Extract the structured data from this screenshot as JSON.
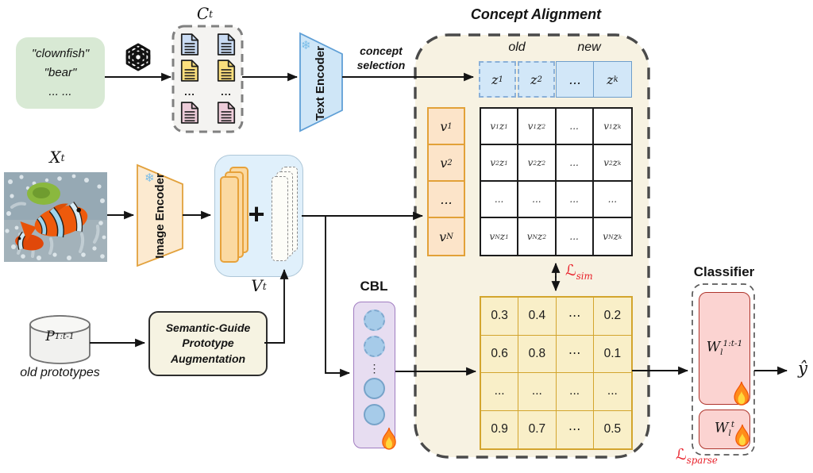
{
  "colors": {
    "panel_bg": "#f7f2e2",
    "accent_red": "#e8212b",
    "doc_blue": "#c9dbf3",
    "doc_yellow": "#fbdf7d",
    "doc_pink": "#edccd9"
  },
  "input_block": {
    "class_lines": [
      "\"clownfish\"",
      "\"bear\"",
      "... ..."
    ],
    "ct_label_html": "C<sub>t</sub>",
    "doc_dots": "...",
    "doc_rows": [
      [
        "blue",
        "blue"
      ],
      [
        "yellow",
        "yellow"
      ],
      "dots",
      [
        "pink",
        "pink"
      ]
    ]
  },
  "image_block": {
    "xt_label_html": "X<sub>t</sub>",
    "image_encoder_lines": [
      "Image",
      "Encoder"
    ],
    "snowflake": "❄"
  },
  "text_block": {
    "text_encoder_lines": [
      "Text",
      "Encoder"
    ],
    "snowflake": "❄",
    "concept_selection_lines": [
      "concept",
      "selection"
    ]
  },
  "fusion": {
    "plus": "+",
    "vt_label_html": "V<sub>t</sub>"
  },
  "prototypes": {
    "p_label_html": "P<sub>1:t-1</sub>",
    "caption": "old prototypes",
    "sga_lines": [
      "Semantic-Guide",
      "Prototype",
      "Augmentation"
    ]
  },
  "cbl": {
    "label": "CBL",
    "dots": "⋮",
    "circles": [
      "dashed",
      "dashed",
      "dots",
      "solid",
      "solid"
    ]
  },
  "alignment": {
    "title": "Concept Alignment",
    "old_label": "old",
    "new_label": "new",
    "z_cells_html": [
      "z<sub>1</sub>",
      "z<sub>2</sub>",
      "...",
      "z<sub>k</sub>"
    ],
    "v_cells_html": [
      "v<sub>1</sub>",
      "v<sub>2</sub>",
      "...",
      "v<sub>N</sub>"
    ],
    "sim_cells_html": [
      [
        "v<sub>1</sub>z<sub>1</sub>",
        "v<sub>1</sub>z<sub>2</sub>",
        "...",
        "v<sub>1</sub>z<sub>k</sub>"
      ],
      [
        "v<sub>2</sub>z<sub>1</sub>",
        "v<sub>2</sub>z<sub>2</sub>",
        "...",
        "v<sub>2</sub>z<sub>k</sub>"
      ],
      [
        "...",
        "...",
        "...",
        "..."
      ],
      [
        "v<sub>N</sub>z<sub>1</sub>",
        "v<sub>N</sub>z<sub>2</sub>",
        "...",
        "v<sub>N</sub>z<sub>k</sub>"
      ]
    ],
    "loss_sim_html": "ℒ<sub>sim</sub>",
    "score_cells": [
      [
        "0.3",
        "0.4",
        "⋯",
        "0.2"
      ],
      [
        "0.6",
        "0.8",
        "⋯",
        "0.1"
      ],
      [
        "...",
        "...",
        "...",
        "..."
      ],
      [
        "0.9",
        "0.7",
        "⋯",
        "0.5"
      ]
    ]
  },
  "classifier": {
    "title": "Classifier",
    "w_old_html": "W<sub>l</sub><sup>1:t-1</sup>",
    "w_new_html": "W<sub>l</sub><sup>t</sup>",
    "loss_sparse_html": "ℒ<sub>sparse</sub>",
    "output_html": "ŷ"
  }
}
